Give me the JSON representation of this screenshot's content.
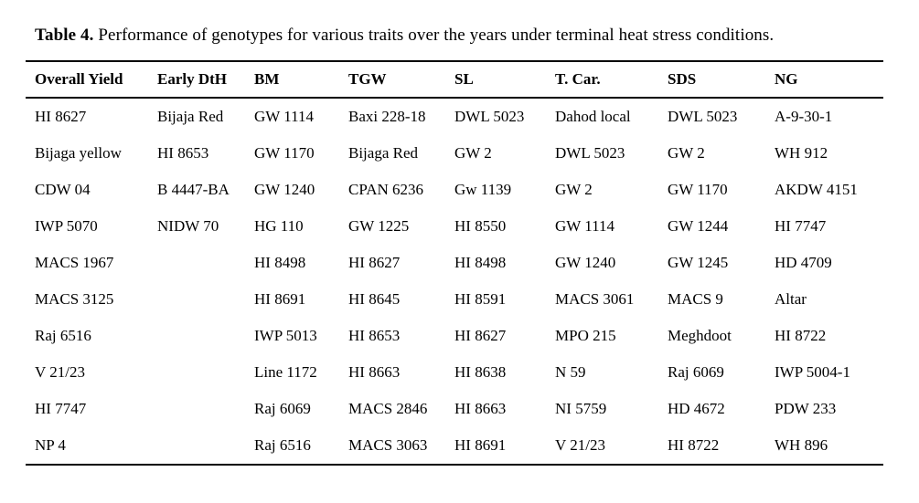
{
  "title": {
    "label": "Table 4.",
    "text": "Performance of genotypes for various traits over the years under terminal heat stress conditions."
  },
  "colors": {
    "background": "#ffffff",
    "text": "#000000",
    "rule": "#000000"
  },
  "table": {
    "columns": [
      "Overall Yield",
      "Early DtH",
      "BM",
      "TGW",
      "SL",
      "T. Car.",
      "SDS",
      "NG"
    ],
    "rows": [
      [
        "HI 8627",
        "Bijaja Red",
        "GW 1114",
        "Baxi 228-18",
        "DWL 5023",
        "Dahod local",
        "DWL 5023",
        "A-9-30-1"
      ],
      [
        "Bijaga yellow",
        "HI 8653",
        "GW 1170",
        "Bijaga Red",
        "GW 2",
        "DWL 5023",
        "GW 2",
        "WH 912"
      ],
      [
        "CDW 04",
        "B 4447-BA",
        "GW 1240",
        "CPAN 6236",
        "Gw 1139",
        "GW 2",
        "GW 1170",
        "AKDW 4151"
      ],
      [
        "IWP 5070",
        "NIDW 70",
        "HG 110",
        "GW 1225",
        "HI 8550",
        "GW 1114",
        "GW 1244",
        "HI 7747"
      ],
      [
        "MACS 1967",
        "",
        "HI 8498",
        "HI 8627",
        "HI 8498",
        "GW 1240",
        "GW 1245",
        "HD 4709"
      ],
      [
        "MACS 3125",
        "",
        "HI 8691",
        "HI 8645",
        "HI 8591",
        "MACS 3061",
        "MACS 9",
        "Altar"
      ],
      [
        "Raj 6516",
        "",
        "IWP 5013",
        "HI 8653",
        "HI 8627",
        "MPO 215",
        "Meghdoot",
        "HI 8722"
      ],
      [
        "V 21/23",
        "",
        "Line 1172",
        "HI 8663",
        "HI 8638",
        "N 59",
        "Raj 6069",
        "IWP 5004-1"
      ],
      [
        "HI 7747",
        "",
        "Raj 6069",
        "MACS 2846",
        "HI 8663",
        "NI 5759",
        "HD 4672",
        "PDW 233"
      ],
      [
        "NP 4",
        "",
        "Raj 6516",
        "MACS 3063",
        "HI 8691",
        "V 21/23",
        "HI 8722",
        "WH 896"
      ]
    ]
  }
}
